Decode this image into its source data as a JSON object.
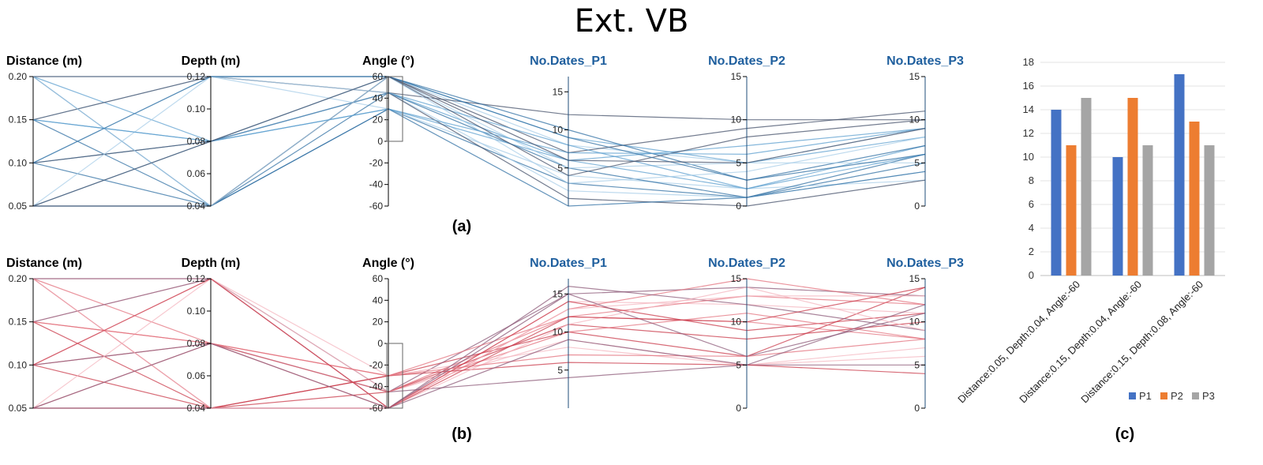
{
  "title": "Ext. VB",
  "colors": {
    "blue_line": "#2f7fb8",
    "red_line": "#d6404e",
    "bar_p1": "#4472c4",
    "bar_p2": "#ed7d31",
    "bar_p3": "#a5a5a5"
  },
  "chart_data": [
    {
      "type": "parallel_coordinates",
      "panel_label": "(a)",
      "color_scheme": "blue",
      "axes": [
        {
          "name": "Distance (m)",
          "range": [
            0.05,
            0.2
          ],
          "ticks": [
            "0.20",
            "0.15",
            "0.10",
            "0.05"
          ],
          "tick_values": [
            0.2,
            0.15,
            0.1,
            0.05
          ]
        },
        {
          "name": "Depth (m)",
          "range": [
            0.04,
            0.12
          ],
          "ticks": [
            "0.12",
            "0.10",
            "0.08",
            "0.06",
            "0.04"
          ],
          "tick_values": [
            0.12,
            0.1,
            0.08,
            0.06,
            0.04
          ]
        },
        {
          "name": "Angle (°)",
          "range": [
            -60,
            60
          ],
          "ticks": [
            "60",
            "40",
            "20",
            "0",
            "-20",
            "-40",
            "-60"
          ],
          "tick_values": [
            60,
            40,
            20,
            0,
            -20,
            -40,
            -60
          ],
          "brush": [
            0,
            60
          ]
        },
        {
          "name": "No.Dates_P1",
          "range": [
            0,
            17
          ],
          "ticks": [
            "15",
            "10",
            "5"
          ],
          "tick_values": [
            15,
            10,
            5
          ]
        },
        {
          "name": "No.Dates_P2",
          "range": [
            0,
            15
          ],
          "ticks": [
            "15",
            "10",
            "5",
            "0"
          ],
          "tick_values": [
            15,
            10,
            5,
            0
          ]
        },
        {
          "name": "No.Dates_P3",
          "range": [
            0,
            15
          ],
          "ticks": [
            "15",
            "10",
            "5",
            "0"
          ],
          "tick_values": [
            15,
            10,
            5,
            0
          ]
        }
      ],
      "lines": [
        [
          0.2,
          0.12,
          60,
          8,
          5,
          9
        ],
        [
          0.2,
          0.08,
          45,
          6,
          2,
          7
        ],
        [
          0.2,
          0.04,
          30,
          3,
          1,
          5
        ],
        [
          0.2,
          0.12,
          45,
          12,
          10,
          10
        ],
        [
          0.15,
          0.12,
          30,
          4,
          2,
          3
        ],
        [
          0.15,
          0.08,
          60,
          9,
          5,
          8
        ],
        [
          0.15,
          0.04,
          45,
          5,
          1,
          6
        ],
        [
          0.15,
          0.12,
          60,
          7,
          9,
          11
        ],
        [
          0.1,
          0.12,
          45,
          2,
          1,
          4
        ],
        [
          0.1,
          0.08,
          30,
          6,
          7,
          9
        ],
        [
          0.1,
          0.04,
          60,
          10,
          3,
          7
        ],
        [
          0.1,
          0.08,
          45,
          1,
          0,
          3
        ],
        [
          0.05,
          0.12,
          60,
          5,
          5,
          5
        ],
        [
          0.05,
          0.08,
          45,
          8,
          2,
          6
        ],
        [
          0.05,
          0.04,
          30,
          0,
          1,
          4
        ],
        [
          0.05,
          0.04,
          60,
          4,
          8,
          10
        ],
        [
          0.2,
          0.04,
          60,
          3,
          4,
          8
        ],
        [
          0.15,
          0.08,
          30,
          7,
          6,
          9
        ],
        [
          0.1,
          0.12,
          60,
          9,
          3,
          6
        ],
        [
          0.05,
          0.08,
          60,
          6,
          5,
          9
        ]
      ]
    },
    {
      "type": "parallel_coordinates",
      "panel_label": "(b)",
      "color_scheme": "red",
      "axes": [
        {
          "name": "Distance (m)",
          "range": [
            0.05,
            0.2
          ],
          "ticks": [
            "0.20",
            "0.15",
            "0.10",
            "0.05"
          ],
          "tick_values": [
            0.2,
            0.15,
            0.1,
            0.05
          ]
        },
        {
          "name": "Depth (m)",
          "range": [
            0.04,
            0.12
          ],
          "ticks": [
            "0.12",
            "0.10",
            "0.08",
            "0.06",
            "0.04"
          ],
          "tick_values": [
            0.12,
            0.1,
            0.08,
            0.06,
            0.04
          ]
        },
        {
          "name": "Angle (°)",
          "range": [
            -60,
            60
          ],
          "ticks": [
            "60",
            "40",
            "20",
            "0",
            "-20",
            "-40",
            "-60"
          ],
          "tick_values": [
            60,
            40,
            20,
            0,
            -20,
            -40,
            -60
          ],
          "brush": [
            -60,
            0
          ]
        },
        {
          "name": "No.Dates_P1",
          "range": [
            0,
            17
          ],
          "ticks": [
            "15",
            "10",
            "5"
          ],
          "tick_values": [
            15,
            10,
            5
          ]
        },
        {
          "name": "No.Dates_P2",
          "range": [
            0,
            15
          ],
          "ticks": [
            "15",
            "10",
            "5",
            "0"
          ],
          "tick_values": [
            15,
            10,
            5,
            0
          ]
        },
        {
          "name": "No.Dates_P3",
          "range": [
            0,
            15
          ],
          "ticks": [
            "15",
            "10",
            "5",
            "0"
          ],
          "tick_values": [
            15,
            10,
            5,
            0
          ]
        }
      ],
      "lines": [
        [
          0.2,
          0.12,
          -60,
          14,
          12,
          11
        ],
        [
          0.2,
          0.08,
          -45,
          12,
          10,
          8
        ],
        [
          0.2,
          0.04,
          -30,
          10,
          6,
          14
        ],
        [
          0.2,
          0.12,
          -45,
          15,
          14,
          13
        ],
        [
          0.15,
          0.12,
          -30,
          8,
          5,
          6
        ],
        [
          0.15,
          0.08,
          -60,
          13,
          15,
          12
        ],
        [
          0.15,
          0.04,
          -45,
          11,
          8,
          10
        ],
        [
          0.15,
          0.12,
          -60,
          16,
          12,
          9
        ],
        [
          0.1,
          0.12,
          -45,
          9,
          5,
          7
        ],
        [
          0.1,
          0.08,
          -30,
          12,
          13,
          12
        ],
        [
          0.1,
          0.04,
          -60,
          14,
          9,
          11
        ],
        [
          0.1,
          0.08,
          -45,
          4,
          5,
          5
        ],
        [
          0.05,
          0.12,
          -60,
          13,
          13,
          13
        ],
        [
          0.05,
          0.08,
          -45,
          10,
          11,
          8
        ],
        [
          0.05,
          0.04,
          -30,
          6,
          5,
          4
        ],
        [
          0.05,
          0.04,
          -60,
          15,
          6,
          11
        ],
        [
          0.2,
          0.04,
          -60,
          11,
          14,
          9
        ],
        [
          0.15,
          0.08,
          -30,
          7,
          6,
          8
        ],
        [
          0.1,
          0.12,
          -60,
          12,
          10,
          14
        ],
        [
          0.05,
          0.08,
          -60,
          9,
          5,
          12
        ]
      ]
    },
    {
      "type": "bar",
      "panel_label": "(c)",
      "categories": [
        "Distance:0.05, Depth:0.04, Angle:-60",
        "Distance:0.15, Depth:0.04, Angle:-60",
        "Distance:0.15, Depth:0.08, Angle:-60"
      ],
      "series": [
        {
          "name": "P1",
          "values": [
            14,
            10,
            17
          ]
        },
        {
          "name": "P2",
          "values": [
            11,
            15,
            13
          ]
        },
        {
          "name": "P3",
          "values": [
            15,
            11,
            11
          ]
        }
      ],
      "ylim": [
        0,
        18
      ],
      "yticks": [
        "18",
        "16",
        "14",
        "12",
        "10",
        "8",
        "6",
        "4",
        "2",
        "0"
      ],
      "ytick_values": [
        18,
        16,
        14,
        12,
        10,
        8,
        6,
        4,
        2,
        0
      ],
      "legend_position": "bottom-right"
    }
  ]
}
